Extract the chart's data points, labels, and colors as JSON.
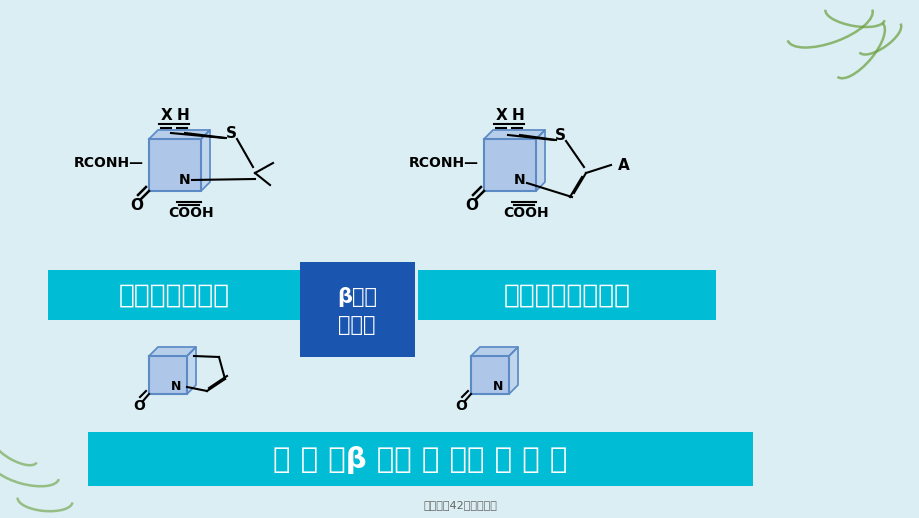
{
  "bg_color": "#daeef3",
  "title_footer": "药理学第42章青霉素类",
  "label_penicillin": "青霉素类抗生素",
  "label_cephalosporin": "头孢菌素类抗生素",
  "label_beta_lactam": "β－内\n酰胺环",
  "label_atypical": "非 典 型β －内 酰 胺抗 生 素 类",
  "teal_color": "#00bcd4",
  "blue_dark": "#1a56b0",
  "square_fill": "#aec6e8",
  "square_edge": "#5b8ac4",
  "text_color_white": "#ffffff",
  "text_color_black": "#000000",
  "footer_color": "#666666"
}
